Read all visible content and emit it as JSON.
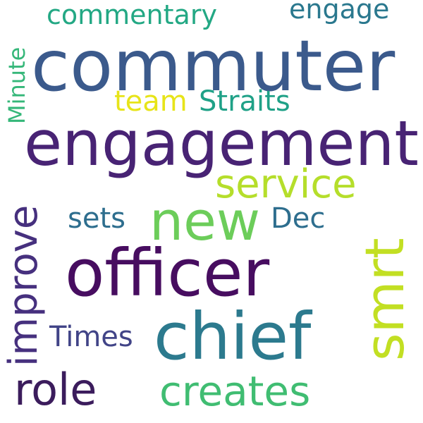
{
  "words": {
    "commuter": {
      "text": "commuter",
      "color": "#3b5a8c"
    },
    "engagement": {
      "text": "engagement",
      "color": "#482374"
    },
    "officer": {
      "text": "officer",
      "color": "#470d60"
    },
    "chief": {
      "text": "chief",
      "color": "#2c7a8e"
    },
    "new": {
      "text": "new",
      "color": "#6ccd5a"
    },
    "smrt": {
      "text": "smrt",
      "color": "#c2df23"
    },
    "service": {
      "text": "service",
      "color": "#b5de2b"
    },
    "creates": {
      "text": "creates",
      "color": "#40bd72"
    },
    "role": {
      "text": "role",
      "color": "#3b1c5c"
    },
    "improve": {
      "text": "improve",
      "color": "#46307e"
    },
    "commentary": {
      "text": "commentary",
      "color": "#23a884"
    },
    "engage": {
      "text": "engage",
      "color": "#2a788e"
    },
    "straits": {
      "text": "Straits",
      "color": "#1fa187"
    },
    "team": {
      "text": "team",
      "color": "#e7e419"
    },
    "minute": {
      "text": "Minute",
      "color": "#35b779"
    },
    "sets": {
      "text": "sets",
      "color": "#2e6e8e"
    },
    "dec": {
      "text": "Dec",
      "color": "#2e6e8e"
    },
    "times": {
      "text": "Times",
      "color": "#414487"
    }
  }
}
